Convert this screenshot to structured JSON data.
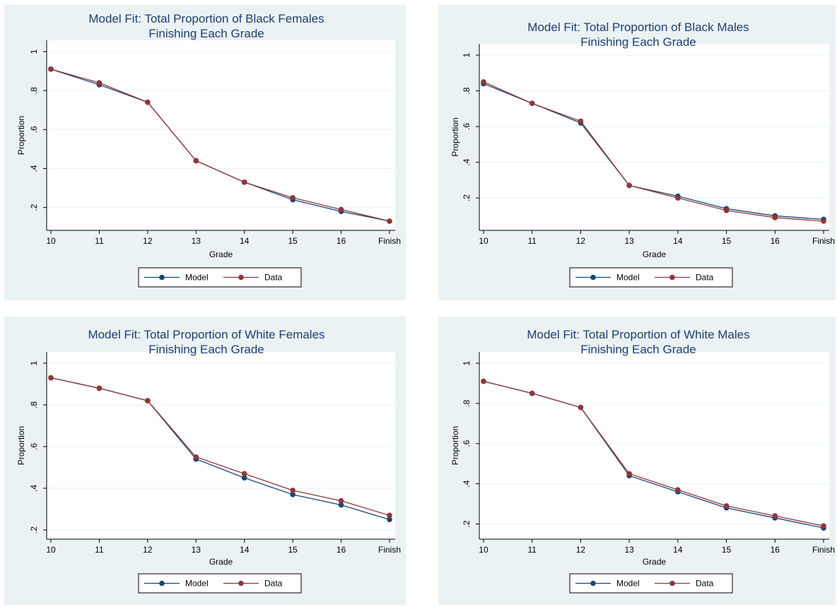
{
  "chart_data": [
    {
      "type": "line",
      "title": [
        "Model Fit: Total Proportion of Black Females",
        "Finishing Each Grade"
      ],
      "xlabel": "Grade",
      "ylabel": "Proportion",
      "categories": [
        "10",
        "11",
        "12",
        "13",
        "14",
        "15",
        "16",
        "Finish"
      ],
      "yticks": [
        ".2",
        ".4",
        ".6",
        ".8",
        "1"
      ],
      "ytick_values": [
        0.2,
        0.4,
        0.6,
        0.8,
        1.0
      ],
      "ylim": [
        0.13,
        1.0
      ],
      "series": [
        {
          "name": "Model",
          "color": "#1a476f",
          "values": [
            0.91,
            0.83,
            0.74,
            0.44,
            0.33,
            0.24,
            0.18,
            0.13
          ]
        },
        {
          "name": "Data",
          "color": "#90353b",
          "values": [
            0.91,
            0.84,
            0.74,
            0.44,
            0.33,
            0.25,
            0.19,
            0.13
          ]
        }
      ],
      "grid": true,
      "legend": "bottom"
    },
    {
      "type": "line",
      "title": [
        "Model Fit: Total Proportion of Black Males",
        "Finishing Each Grade"
      ],
      "xlabel": "Grade",
      "ylabel": "Proportion",
      "categories": [
        "10",
        "11",
        "12",
        "13",
        "14",
        "15",
        "16",
        "Finish"
      ],
      "yticks": [
        ".2",
        ".4",
        ".6",
        ".8",
        "1"
      ],
      "ytick_values": [
        0.2,
        0.4,
        0.6,
        0.8,
        1.0
      ],
      "ylim": [
        0.07,
        1.0
      ],
      "series": [
        {
          "name": "Model",
          "color": "#1a476f",
          "values": [
            0.84,
            0.73,
            0.62,
            0.27,
            0.21,
            0.14,
            0.1,
            0.08
          ]
        },
        {
          "name": "Data",
          "color": "#90353b",
          "values": [
            0.85,
            0.73,
            0.63,
            0.27,
            0.2,
            0.13,
            0.09,
            0.07
          ]
        }
      ],
      "grid": true,
      "legend": "bottom"
    },
    {
      "type": "line",
      "title": [
        "Model Fit: Total Proportion of White Females",
        "Finishing Each Grade"
      ],
      "xlabel": "Grade",
      "ylabel": "Proportion",
      "categories": [
        "10",
        "11",
        "12",
        "13",
        "14",
        "15",
        "16",
        "Finish"
      ],
      "yticks": [
        ".2",
        ".4",
        ".6",
        ".8",
        "1"
      ],
      "ytick_values": [
        0.2,
        0.4,
        0.6,
        0.8,
        1.0
      ],
      "ylim": [
        0.2,
        1.0
      ],
      "series": [
        {
          "name": "Model",
          "color": "#1a476f",
          "values": [
            0.93,
            0.88,
            0.82,
            0.54,
            0.45,
            0.37,
            0.32,
            0.25
          ]
        },
        {
          "name": "Data",
          "color": "#90353b",
          "values": [
            0.93,
            0.88,
            0.82,
            0.55,
            0.47,
            0.39,
            0.34,
            0.27
          ]
        }
      ],
      "grid": true,
      "legend": "bottom"
    },
    {
      "type": "line",
      "title": [
        "Model Fit: Total Proportion of White Males",
        "Finishing Each Grade"
      ],
      "xlabel": "Grade",
      "ylabel": "Proportion",
      "categories": [
        "10",
        "11",
        "12",
        "13",
        "14",
        "15",
        "16",
        "Finish"
      ],
      "yticks": [
        ".2",
        ".4",
        ".6",
        ".8",
        "1"
      ],
      "ytick_values": [
        0.2,
        0.4,
        0.6,
        0.8,
        1.0
      ],
      "ylim": [
        0.17,
        1.0
      ],
      "series": [
        {
          "name": "Model",
          "color": "#1a476f",
          "values": [
            0.91,
            0.85,
            0.78,
            0.44,
            0.36,
            0.28,
            0.23,
            0.18
          ]
        },
        {
          "name": "Data",
          "color": "#90353b",
          "values": [
            0.91,
            0.85,
            0.78,
            0.45,
            0.37,
            0.29,
            0.24,
            0.19
          ]
        }
      ],
      "grid": true,
      "legend": "bottom"
    }
  ]
}
